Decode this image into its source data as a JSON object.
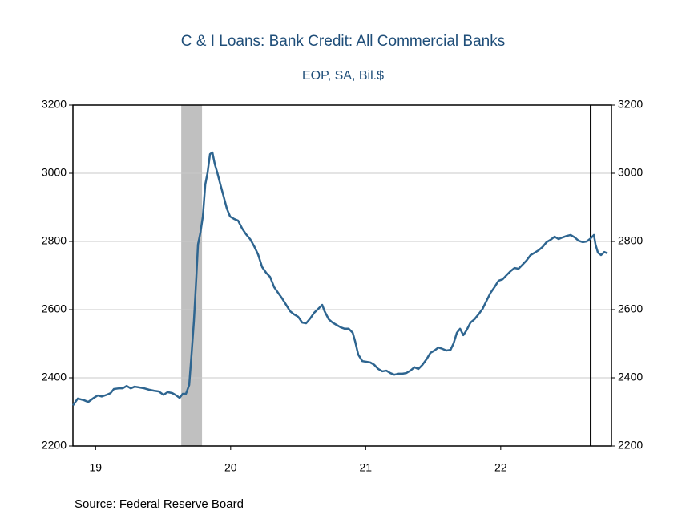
{
  "chart_data": {
    "type": "line",
    "title": "C & I Loans: Bank Credit: All Commercial Banks",
    "subtitle": "EOP, SA, Bil.$",
    "source": "Source:  Federal Reserve Board",
    "xlim": [
      2019.332,
      2023.32
    ],
    "ylim": [
      2200,
      3200
    ],
    "yticks": [
      2200,
      2400,
      2600,
      2800,
      3000,
      3200
    ],
    "xticks": [
      {
        "value": 2019.5,
        "label": "19"
      },
      {
        "value": 2020.5,
        "label": "20"
      },
      {
        "value": 2021.5,
        "label": "21"
      },
      {
        "value": 2022.5,
        "label": "22"
      }
    ],
    "grid": true,
    "recession": [
      2020.134,
      2020.288
    ],
    "marker_line": 2023.166,
    "series": [
      {
        "name": "C & I Loans",
        "color": "#2e6590",
        "x": [
          2019.332,
          2019.368,
          2019.415,
          2019.445,
          2019.487,
          2019.516,
          2019.546,
          2019.582,
          2019.611,
          2019.635,
          2019.671,
          2019.7,
          2019.73,
          2019.76,
          2019.789,
          2019.819,
          2019.861,
          2019.896,
          2019.932,
          2019.967,
          2020.003,
          2020.033,
          2020.068,
          2020.098,
          2020.122,
          2020.145,
          2020.169,
          2020.193,
          2020.211,
          2020.228,
          2020.246,
          2020.258,
          2020.276,
          2020.294,
          2020.312,
          2020.329,
          2020.347,
          2020.365,
          2020.383,
          2020.401,
          2020.424,
          2020.448,
          2020.472,
          2020.496,
          2020.525,
          2020.555,
          2020.585,
          2020.614,
          2020.644,
          2020.674,
          2020.703,
          2020.733,
          2020.763,
          2020.792,
          2020.822,
          2020.852,
          2020.881,
          2020.911,
          2020.941,
          2020.97,
          2021.0,
          2021.03,
          2021.059,
          2021.089,
          2021.119,
          2021.148,
          2021.178,
          2021.196,
          2021.226,
          2021.255,
          2021.285,
          2021.315,
          2021.344,
          2021.374,
          2021.404,
          2021.421,
          2021.445,
          2021.475,
          2021.504,
          2021.534,
          2021.564,
          2021.593,
          2021.623,
          2021.653,
          2021.682,
          2021.712,
          2021.742,
          2021.772,
          2021.801,
          2021.831,
          2021.861,
          2021.89,
          2021.92,
          2021.95,
          2021.979,
          2022.009,
          2022.039,
          2022.068,
          2022.098,
          2022.128,
          2022.151,
          2022.175,
          2022.199,
          2022.223,
          2022.246,
          2022.276,
          2022.306,
          2022.335,
          2022.365,
          2022.395,
          2022.424,
          2022.454,
          2022.484,
          2022.514,
          2022.543,
          2022.573,
          2022.602,
          2022.632,
          2022.662,
          2022.691,
          2022.721,
          2022.751,
          2022.78,
          2022.81,
          2022.84,
          2022.87,
          2022.899,
          2022.929,
          2022.959,
          2022.988,
          2023.018,
          2023.048,
          2023.077,
          2023.107,
          2023.137,
          2023.166,
          2023.19,
          2023.202,
          2023.22,
          2023.243,
          2023.267,
          2023.291
        ],
        "values": [
          2319,
          2339,
          2334,
          2329,
          2341,
          2348,
          2345,
          2350,
          2355,
          2367,
          2369,
          2369,
          2376,
          2369,
          2374,
          2372,
          2369,
          2365,
          2362,
          2360,
          2350,
          2358,
          2355,
          2348,
          2341,
          2353,
          2353,
          2379,
          2473,
          2567,
          2696,
          2791,
          2826,
          2873,
          2967,
          3002,
          3056,
          3061,
          3026,
          3002,
          2967,
          2932,
          2896,
          2873,
          2866,
          2861,
          2838,
          2821,
          2807,
          2786,
          2762,
          2725,
          2708,
          2696,
          2666,
          2649,
          2633,
          2614,
          2595,
          2586,
          2579,
          2562,
          2560,
          2574,
          2591,
          2602,
          2614,
          2595,
          2572,
          2562,
          2555,
          2548,
          2544,
          2544,
          2532,
          2508,
          2468,
          2449,
          2447,
          2445,
          2438,
          2426,
          2419,
          2421,
          2414,
          2409,
          2412,
          2412,
          2414,
          2421,
          2431,
          2426,
          2438,
          2454,
          2473,
          2480,
          2489,
          2485,
          2480,
          2482,
          2501,
          2532,
          2544,
          2525,
          2539,
          2562,
          2572,
          2586,
          2602,
          2626,
          2649,
          2666,
          2685,
          2689,
          2701,
          2713,
          2722,
          2720,
          2732,
          2744,
          2760,
          2767,
          2774,
          2784,
          2798,
          2805,
          2814,
          2807,
          2812,
          2816,
          2819,
          2812,
          2802,
          2798,
          2800,
          2809,
          2819,
          2791,
          2767,
          2760,
          2769,
          2765
        ]
      }
    ]
  }
}
